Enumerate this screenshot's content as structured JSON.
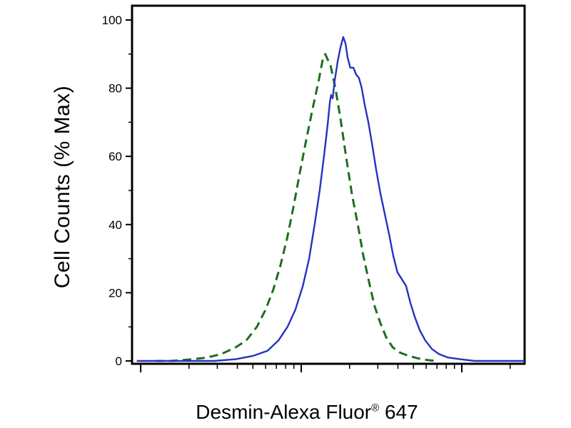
{
  "figure": {
    "background": "#ffffff",
    "xlabel_parts": {
      "main": "Desmin-Alexa Fluor",
      "sup": "®",
      "tail": " 647"
    }
  },
  "chart_data": {
    "type": "line",
    "title": "",
    "xlabel": "Desmin-Alexa Fluor® 647",
    "ylabel": "Cell Counts (% Max)",
    "ylim": [
      0,
      100
    ],
    "grid": false,
    "legend": "none",
    "y_axis": {
      "major_ticks": [
        0,
        20,
        40,
        60,
        80,
        100
      ],
      "minor_ticks": [
        10,
        30,
        50,
        70,
        90
      ]
    },
    "x_axis": {
      "scale": "log",
      "tick_labels_visible": false,
      "decades": 3,
      "first_major_frac": 0.022,
      "decade_frac": 0.409
    },
    "series": [
      {
        "name": "dashed-green-histogram",
        "color": "#1d6f1d",
        "line_style": "dashed",
        "dash": "12 7",
        "stroke_width": 3,
        "points": [
          [
            0.06,
            0
          ],
          [
            0.1,
            0
          ],
          [
            0.155,
            0.5
          ],
          [
            0.191,
            1
          ],
          [
            0.227,
            2
          ],
          [
            0.264,
            4
          ],
          [
            0.291,
            6
          ],
          [
            0.318,
            10
          ],
          [
            0.34,
            15
          ],
          [
            0.36,
            21
          ],
          [
            0.378,
            28
          ],
          [
            0.395,
            36
          ],
          [
            0.411,
            45
          ],
          [
            0.427,
            55
          ],
          [
            0.444,
            65
          ],
          [
            0.46,
            74
          ],
          [
            0.475,
            82
          ],
          [
            0.485,
            88
          ],
          [
            0.492,
            90
          ],
          [
            0.5,
            88
          ],
          [
            0.505,
            87
          ],
          [
            0.518,
            80
          ],
          [
            0.531,
            71
          ],
          [
            0.545,
            60
          ],
          [
            0.56,
            49
          ],
          [
            0.575,
            40
          ],
          [
            0.589,
            31
          ],
          [
            0.604,
            23
          ],
          [
            0.618,
            16
          ],
          [
            0.633,
            11
          ],
          [
            0.647,
            7
          ],
          [
            0.664,
            4
          ],
          [
            0.682,
            2.5
          ],
          [
            0.704,
            1.5
          ],
          [
            0.727,
            0.8
          ],
          [
            0.751,
            0.3
          ],
          [
            0.775,
            0
          ]
        ]
      },
      {
        "name": "solid-blue-histogram",
        "color": "#2433bd",
        "line_style": "solid",
        "dash": "",
        "stroke_width": 2.4,
        "points": [
          [
            0.012,
            0
          ],
          [
            0.12,
            0
          ],
          [
            0.209,
            0
          ],
          [
            0.264,
            0.5
          ],
          [
            0.309,
            1.5
          ],
          [
            0.345,
            3
          ],
          [
            0.373,
            6
          ],
          [
            0.396,
            10
          ],
          [
            0.416,
            15
          ],
          [
            0.435,
            22
          ],
          [
            0.451,
            30
          ],
          [
            0.465,
            40
          ],
          [
            0.478,
            50
          ],
          [
            0.489,
            60
          ],
          [
            0.498,
            69
          ],
          [
            0.504,
            76
          ],
          [
            0.507,
            78
          ],
          [
            0.511,
            77
          ],
          [
            0.516,
            82
          ],
          [
            0.524,
            88
          ],
          [
            0.531,
            92
          ],
          [
            0.538,
            95
          ],
          [
            0.544,
            93
          ],
          [
            0.549,
            89
          ],
          [
            0.556,
            86
          ],
          [
            0.564,
            86
          ],
          [
            0.571,
            84
          ],
          [
            0.578,
            83
          ],
          [
            0.585,
            80
          ],
          [
            0.593,
            75
          ],
          [
            0.602,
            70
          ],
          [
            0.611,
            64
          ],
          [
            0.622,
            56
          ],
          [
            0.633,
            49
          ],
          [
            0.644,
            43
          ],
          [
            0.655,
            37
          ],
          [
            0.665,
            31
          ],
          [
            0.676,
            26
          ],
          [
            0.687,
            24
          ],
          [
            0.698,
            22
          ],
          [
            0.709,
            17
          ],
          [
            0.72,
            13
          ],
          [
            0.733,
            9
          ],
          [
            0.747,
            6
          ],
          [
            0.764,
            3.5
          ],
          [
            0.782,
            2
          ],
          [
            0.805,
            1
          ],
          [
            0.836,
            0.5
          ],
          [
            0.873,
            0
          ],
          [
            0.94,
            0
          ],
          [
            1.0,
            0
          ]
        ]
      }
    ]
  }
}
